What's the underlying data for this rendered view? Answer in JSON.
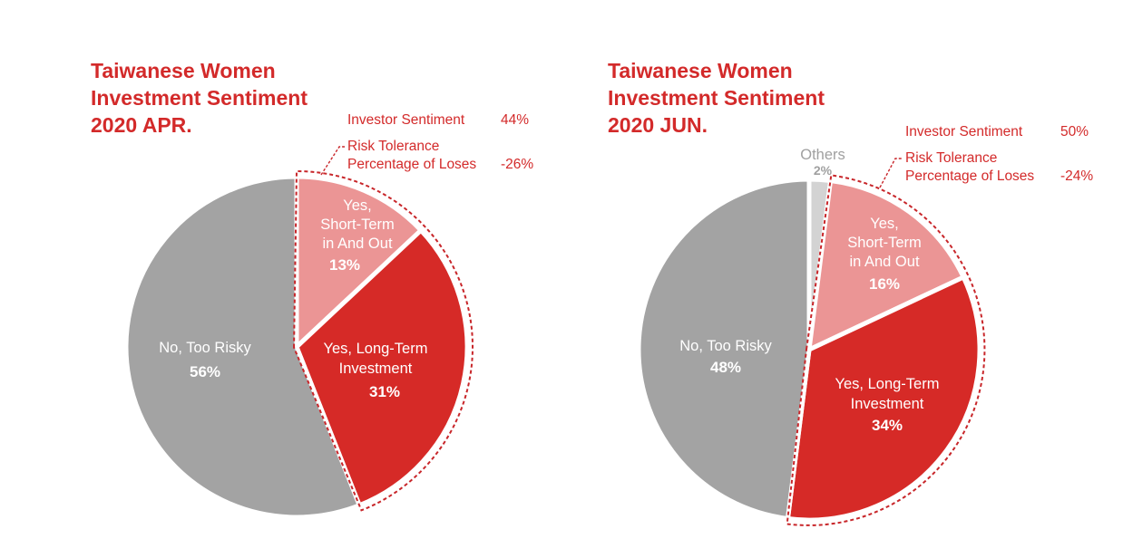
{
  "chart_data": [
    {
      "type": "pie",
      "title": [
        "Taiwanese Women",
        "Investment Sentiment",
        "2020 APR."
      ],
      "slices": [
        {
          "name": "short_term",
          "label": [
            "Yes,",
            "Short-Term",
            "in And Out"
          ],
          "value": 13,
          "value_label": "13%",
          "color": "#eb9595"
        },
        {
          "name": "long_term",
          "label": [
            "Yes, Long-Term",
            "Investment"
          ],
          "value": 31,
          "value_label": "31%",
          "color": "#d62a27"
        },
        {
          "name": "no_risky",
          "label": [
            "No, Too Risky"
          ],
          "value": 56,
          "value_label": "56%",
          "color": "#a3a3a3"
        }
      ],
      "annotations": {
        "investor_sentiment": {
          "label": "Investor Sentiment",
          "value": "44%"
        },
        "risk_tolerance": {
          "label_line1": "Risk Tolerance",
          "label_line2": "Percentage of Loses",
          "value": "-26%"
        }
      }
    },
    {
      "type": "pie",
      "title": [
        "Taiwanese Women",
        "Investment Sentiment",
        "2020 JUN."
      ],
      "slices": [
        {
          "name": "others",
          "label": [
            "Others"
          ],
          "value": 2,
          "value_label": "2%",
          "color": "#d3d3d3"
        },
        {
          "name": "short_term",
          "label": [
            "Yes,",
            "Short-Term",
            "in And Out"
          ],
          "value": 16,
          "value_label": "16%",
          "color": "#eb9595"
        },
        {
          "name": "long_term",
          "label": [
            "Yes, Long-Term",
            "Investment"
          ],
          "value": 34,
          "value_label": "34%",
          "color": "#d62a27"
        },
        {
          "name": "no_risky",
          "label": [
            "No, Too Risky"
          ],
          "value": 48,
          "value_label": "48%",
          "color": "#a3a3a3"
        }
      ],
      "annotations": {
        "investor_sentiment": {
          "label": "Investor Sentiment",
          "value": "50%"
        },
        "risk_tolerance": {
          "label_line1": "Risk Tolerance",
          "label_line2": "Percentage of Loses",
          "value": "-24%"
        }
      }
    }
  ],
  "colors": {
    "accent": "#d32a2a",
    "highlight_outline": "#c8262a"
  }
}
